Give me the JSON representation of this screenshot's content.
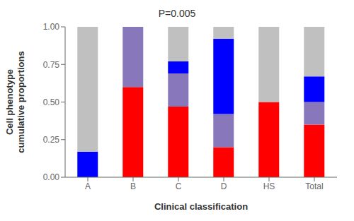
{
  "chart_data": {
    "type": "bar",
    "stacked": true,
    "title": "P=0.005",
    "xlabel": "Clinical classification",
    "ylabel": "Cell phenotype\ncumulative proportions",
    "categories": [
      "A",
      "B",
      "C",
      "D",
      "HS",
      "Total"
    ],
    "series": [
      {
        "color": "#ff0000",
        "values": [
          0.0,
          0.6,
          0.47,
          0.2,
          0.5,
          0.35
        ]
      },
      {
        "color": "#8877bb",
        "values": [
          0.0,
          0.4,
          0.22,
          0.22,
          0.0,
          0.15
        ]
      },
      {
        "color": "#0000ff",
        "values": [
          0.17,
          0.0,
          0.08,
          0.5,
          0.0,
          0.17
        ]
      },
      {
        "color": "#c0c0c0",
        "values": [
          0.83,
          0.0,
          0.23,
          0.08,
          0.5,
          0.33
        ]
      }
    ],
    "ylim": [
      0,
      1.0
    ],
    "yticks": [
      {
        "value": 0,
        "label": "0.00"
      },
      {
        "value": 0.25,
        "label": "0.25"
      },
      {
        "value": 0.5,
        "label": "0.50"
      },
      {
        "value": 0.75,
        "label": "0.75"
      },
      {
        "value": 1.0,
        "label": "1.00"
      }
    ],
    "grid": false
  }
}
